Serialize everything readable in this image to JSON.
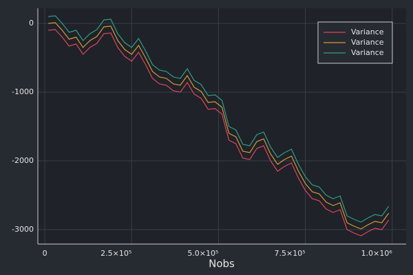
{
  "chart_data": {
    "type": "line",
    "xlabel": "Nobs",
    "x": [
      10000,
      30000,
      50000,
      70000,
      90000,
      110000,
      130000,
      150000,
      170000,
      190000,
      210000,
      230000,
      250000,
      270000,
      290000,
      310000,
      330000,
      350000,
      370000,
      390000,
      410000,
      430000,
      450000,
      470000,
      490000,
      510000,
      530000,
      550000,
      570000,
      590000,
      610000,
      630000,
      650000,
      670000,
      690000,
      710000,
      730000,
      750000,
      770000,
      790000,
      810000,
      830000,
      850000,
      870000,
      890000,
      910000,
      930000,
      950000,
      970000,
      990000
    ],
    "series": [
      {
        "name": "Variance",
        "color": "#e0455f",
        "values": [
          -100,
          -90,
          -200,
          -330,
          -300,
          -450,
          -350,
          -290,
          -150,
          -140,
          -350,
          -480,
          -550,
          -420,
          -600,
          -800,
          -880,
          -900,
          -980,
          -1000,
          -860,
          -1030,
          -1090,
          -1250,
          -1240,
          -1320,
          -1700,
          -1750,
          -1960,
          -1980,
          -1820,
          -1780,
          -2000,
          -2150,
          -2080,
          -2030,
          -2250,
          -2430,
          -2550,
          -2580,
          -2700,
          -2750,
          -2710,
          -3000,
          -3050,
          -3090,
          -3030,
          -2980,
          -3000,
          -2860
        ]
      },
      {
        "name": "Variance",
        "color": "#d49a3a",
        "values": [
          0,
          10,
          -100,
          -230,
          -200,
          -350,
          -250,
          -190,
          -50,
          -40,
          -250,
          -380,
          -450,
          -320,
          -500,
          -700,
          -780,
          -800,
          -880,
          -900,
          -760,
          -930,
          -990,
          -1150,
          -1140,
          -1220,
          -1600,
          -1650,
          -1860,
          -1880,
          -1720,
          -1680,
          -1900,
          -2050,
          -1980,
          -1930,
          -2150,
          -2330,
          -2450,
          -2480,
          -2600,
          -2650,
          -2610,
          -2900,
          -2950,
          -2990,
          -2930,
          -2880,
          -2900,
          -2760
        ]
      },
      {
        "name": "Variance",
        "color": "#2f9e8a",
        "values": [
          100,
          110,
          0,
          -130,
          -100,
          -250,
          -150,
          -90,
          50,
          60,
          -150,
          -280,
          -350,
          -220,
          -400,
          -600,
          -680,
          -700,
          -780,
          -800,
          -660,
          -830,
          -890,
          -1050,
          -1040,
          -1120,
          -1500,
          -1550,
          -1760,
          -1780,
          -1620,
          -1580,
          -1800,
          -1950,
          -1880,
          -1830,
          -2050,
          -2230,
          -2350,
          -2380,
          -2500,
          -2550,
          -2510,
          -2800,
          -2850,
          -2890,
          -2830,
          -2780,
          -2800,
          -2660
        ]
      }
    ],
    "xlim": [
      -20000,
      1040000
    ],
    "xticks": [
      0,
      {
        "value": 250000,
        "label": "2.5×10⁵"
      },
      {
        "value": 500000,
        "label": "5.0×10⁵"
      },
      {
        "value": 750000,
        "label": "7.5×10⁵"
      },
      {
        "value": 1000000,
        "label": "1.0×10⁶"
      }
    ],
    "ylim": [
      -3210,
      220
    ],
    "yticks": [
      0,
      -1000,
      -2000,
      -3000
    ],
    "grid": true,
    "legend": "top-right"
  }
}
